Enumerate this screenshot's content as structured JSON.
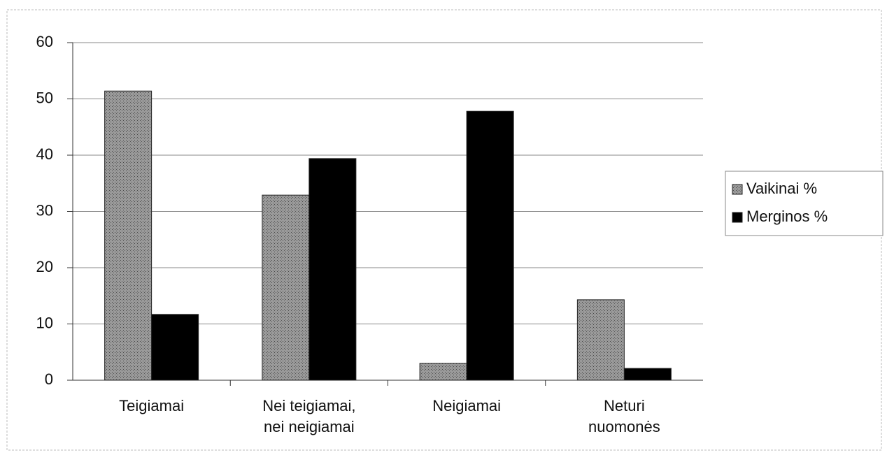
{
  "chart_data": {
    "type": "bar",
    "categories": [
      "Teigiamai",
      "Nei teigiamai,\nnei neigiamai",
      "Neigiamai",
      "Neturi\nnuomonės"
    ],
    "series": [
      {
        "name": "Vaikinai %",
        "color": "#8a8a8a",
        "values": [
          51.4,
          32.9,
          3.0,
          14.3
        ]
      },
      {
        "name": "Merginos %",
        "color": "#000000",
        "values": [
          11.7,
          39.4,
          47.8,
          2.1
        ]
      }
    ],
    "ylim": [
      0,
      60
    ],
    "yticks": [
      0,
      10,
      20,
      30,
      40,
      50,
      60
    ],
    "grid": true,
    "legend": "right"
  }
}
